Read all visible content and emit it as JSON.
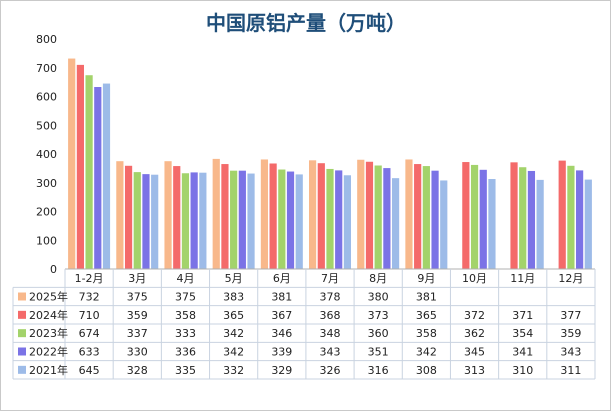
{
  "chart_data": {
    "type": "bar",
    "title": "中国原铝产量（万吨）",
    "ylim": [
      0,
      800
    ],
    "yticks": [
      0,
      100,
      200,
      300,
      400,
      500,
      600,
      700,
      800
    ],
    "categories": [
      "1-2月",
      "3月",
      "4月",
      "5月",
      "6月",
      "7月",
      "8月",
      "9月",
      "10月",
      "11月",
      "12月"
    ],
    "series": [
      {
        "name": "2025年",
        "color": "#f8b88b",
        "values": [
          732,
          375,
          375,
          383,
          381,
          378,
          380,
          381,
          null,
          null,
          null
        ]
      },
      {
        "name": "2024年",
        "color": "#f46a6a",
        "values": [
          710,
          359,
          358,
          365,
          367,
          368,
          373,
          365,
          372,
          371,
          377
        ]
      },
      {
        "name": "2023年",
        "color": "#a3d36b",
        "values": [
          674,
          337,
          333,
          342,
          346,
          348,
          360,
          358,
          362,
          354,
          359
        ]
      },
      {
        "name": "2022年",
        "color": "#7b73e6",
        "values": [
          633,
          330,
          336,
          342,
          339,
          343,
          351,
          342,
          345,
          341,
          343
        ]
      },
      {
        "name": "2021年",
        "color": "#9dbbe8",
        "values": [
          645,
          328,
          335,
          332,
          329,
          326,
          316,
          308,
          313,
          310,
          311
        ]
      }
    ],
    "grid": false,
    "legend": "data-table"
  }
}
